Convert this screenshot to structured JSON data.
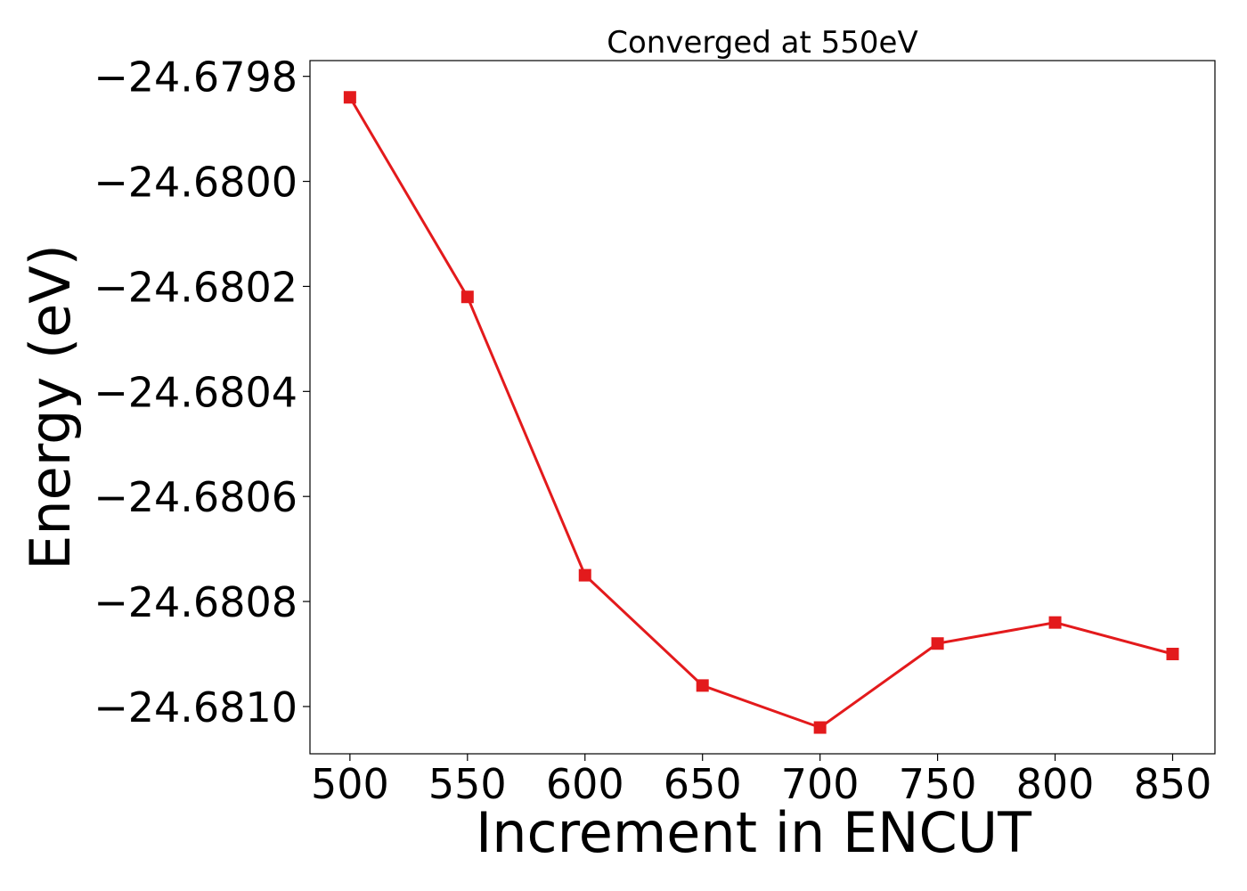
{
  "chart_data": {
    "type": "line",
    "title": "Converged at 550eV",
    "xlabel": "Increment in ENCUT",
    "ylabel": "Energy (eV)",
    "x": [
      500,
      550,
      600,
      650,
      700,
      750,
      800,
      850
    ],
    "series": [
      {
        "values": [
          -24.67984,
          -24.68022,
          -24.68075,
          -24.68096,
          -24.68104,
          -24.68088,
          -24.68084,
          -24.6809
        ]
      }
    ],
    "xticks": [
      500,
      550,
      600,
      650,
      700,
      750,
      800,
      850
    ],
    "yticks": [
      -24.6798,
      -24.68,
      -24.6802,
      -24.6804,
      -24.6806,
      -24.6808,
      -24.681
    ],
    "ytick_labels": [
      "−24.6798",
      "−24.6800",
      "−24.6802",
      "−24.6804",
      "−24.6806",
      "−24.6808",
      "−24.6810"
    ],
    "xlim": [
      483,
      868
    ],
    "ylim": [
      -24.68109,
      -24.67977
    ],
    "grid": false,
    "marker": "square",
    "color": "#e31a1c"
  }
}
